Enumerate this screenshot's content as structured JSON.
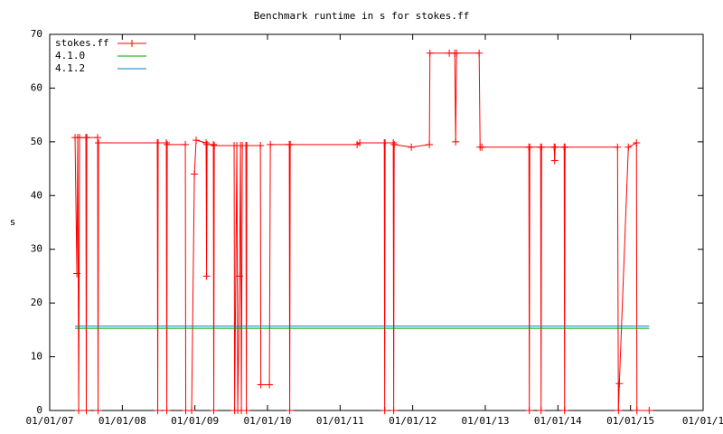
{
  "chart_data": {
    "type": "line",
    "title": "Benchmark runtime in s for stokes.ff",
    "y_label": "s",
    "xlim": [
      2007,
      2016
    ],
    "xticks": [
      {
        "value": 2007,
        "label": "01/01/07"
      },
      {
        "value": 2008,
        "label": "01/01/08"
      },
      {
        "value": 2009,
        "label": "01/01/09"
      },
      {
        "value": 2010,
        "label": "01/01/10"
      },
      {
        "value": 2011,
        "label": "01/01/11"
      },
      {
        "value": 2012,
        "label": "01/01/12"
      },
      {
        "value": 2013,
        "label": "01/01/13"
      },
      {
        "value": 2014,
        "label": "01/01/14"
      },
      {
        "value": 2015,
        "label": "01/01/15"
      },
      {
        "value": 2016,
        "label": "01/01/1"
      }
    ],
    "ylim": [
      0,
      70
    ],
    "yticks": [
      0,
      10,
      20,
      30,
      40,
      50,
      60,
      70
    ],
    "legend": "top-left",
    "series": [
      {
        "name": "stokes.ff",
        "color": "#ff0000",
        "marker": "plus",
        "x": [
          2007.349,
          2007.374,
          2007.386,
          2007.399,
          2007.411,
          2007.498,
          2007.504,
          2007.511,
          2007.66,
          2007.666,
          2007.672,
          2008.482,
          2008.488,
          2008.494,
          2008.606,
          2008.613,
          2008.619,
          2008.868,
          2008.874,
          2008.955,
          2008.993,
          2009.017,
          2009.154,
          2009.161,
          2009.167,
          2009.254,
          2009.26,
          2009.267,
          2009.54,
          2009.547,
          2009.578,
          2009.59,
          2009.615,
          2009.628,
          2009.64,
          2009.653,
          2009.702,
          2009.709,
          2009.715,
          2009.902,
          2009.908,
          2010.026,
          2010.039,
          2010.3,
          2010.306,
          2010.313,
          2011.234,
          2011.271,
          2011.608,
          2011.614,
          2011.62,
          2011.732,
          2011.738,
          2011.745,
          2011.981,
          2012.23,
          2012.237,
          2012.504,
          2012.579,
          2012.592,
          2012.604,
          2012.915,
          2012.928,
          2012.953,
          2013.6,
          2013.606,
          2013.613,
          2013.762,
          2013.768,
          2013.775,
          2013.949,
          2013.955,
          2013.961,
          2014.086,
          2014.092,
          2014.098,
          2014.821,
          2014.833,
          2014.846,
          2014.97,
          2015.082,
          2015.088,
          2015.257
        ],
        "values": [
          50.8,
          25.5,
          50.8,
          0,
          50.8,
          50.8,
          0,
          50.8,
          50.8,
          0,
          49.8,
          49.8,
          0,
          49.8,
          49.8,
          0,
          49.5,
          49.5,
          0,
          0,
          44,
          50.3,
          49.8,
          25,
          49.5,
          49.5,
          0,
          49.3,
          49.3,
          0,
          49.3,
          0,
          25,
          49.3,
          0,
          49.3,
          49.3,
          0,
          49.3,
          49.3,
          4.8,
          4.8,
          49.5,
          49.5,
          0,
          49.5,
          49.5,
          49.8,
          49.8,
          0,
          49.8,
          49.8,
          0,
          49.5,
          49,
          49.5,
          66.5,
          66.5,
          66.5,
          50,
          66.5,
          66.5,
          49,
          49,
          49,
          0,
          49,
          49,
          0,
          49,
          49,
          46.5,
          49,
          49,
          0,
          49,
          49,
          0,
          5,
          49,
          49.8,
          0,
          0
        ]
      },
      {
        "name": "4.1.0",
        "color": "#00a000",
        "x": [
          2007.349,
          2015.257
        ],
        "values": [
          15.3,
          15.3
        ]
      },
      {
        "name": "4.1.2",
        "color": "#0080c0",
        "x": [
          2007.349,
          2015.257
        ],
        "values": [
          15.7,
          15.7
        ]
      }
    ]
  }
}
